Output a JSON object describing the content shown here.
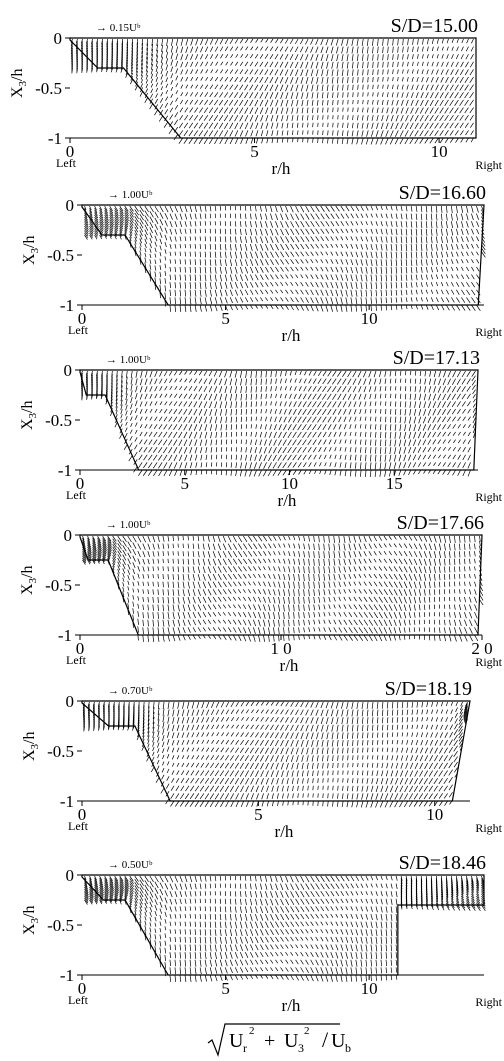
{
  "figure": {
    "bottom_label_main": "U",
    "bottom_label_sub_r": "r",
    "bottom_label_sub_3": "3",
    "bottom_label_plus": "+",
    "bottom_label_exp": "2",
    "bottom_label_den": "U",
    "bottom_label_den_sub": "b"
  },
  "chart_data": [
    {
      "type": "quiver",
      "title": "S/D=15.00",
      "scale_label": "→ 0.15Uᵇ",
      "ylabel": "X₃/h",
      "xlabel": "r/h",
      "left_label": "Left",
      "right_label": "Right",
      "xlim": [
        0,
        11
      ],
      "ylim": [
        -1,
        0
      ],
      "xticks": [
        "0",
        "5",
        "10"
      ],
      "xtick_values": [
        0,
        5,
        10
      ],
      "yticks": [
        "0",
        "-0.5",
        "-1"
      ],
      "ytick_values": [
        0,
        -0.5,
        -1
      ],
      "domain_bottom_r": [
        3.0,
        11.0
      ],
      "step": {
        "r": [
          0.75,
          1.45
        ],
        "x3": -0.3
      }
    },
    {
      "type": "quiver",
      "title": "S/D=16.60",
      "scale_label": "→ 1.00Uᵇ",
      "ylabel": "X₃/h",
      "xlabel": "r/h",
      "left_label": "Left",
      "right_label": "Right",
      "xlim": [
        0,
        14
      ],
      "ylim": [
        -1,
        0
      ],
      "xticks": [
        "0",
        "5",
        "10"
      ],
      "xtick_values": [
        0,
        5,
        10
      ],
      "yticks": [
        "0",
        "-0.5",
        "-1"
      ],
      "ytick_values": [
        0,
        -0.5,
        -1
      ],
      "domain_bottom_r": [
        3.0,
        13.8
      ],
      "step": {
        "r": [
          0.7,
          1.5
        ],
        "x3": -0.3
      }
    },
    {
      "type": "quiver",
      "title": "S/D=17.13",
      "scale_label": "→ 1.00Uᵇ",
      "ylabel": "X₃/h",
      "xlabel": "r/h",
      "left_label": "Left",
      "right_label": "Right",
      "xlim": [
        0,
        19
      ],
      "ylim": [
        -1,
        0
      ],
      "xticks": [
        "0",
        "5",
        "10",
        "15"
      ],
      "xtick_values": [
        0,
        5,
        10,
        15
      ],
      "yticks": [
        "0",
        "-0.5",
        "-1"
      ],
      "ytick_values": [
        0,
        -0.5,
        -1
      ],
      "domain_bottom_r": [
        2.8,
        18.8
      ],
      "step": {
        "r": [
          0.3,
          1.2
        ],
        "x3": -0.25
      }
    },
    {
      "type": "quiver",
      "title": "S/D=17.66",
      "scale_label": "→ 1.00Uᵇ",
      "ylabel": "X₃/h",
      "xlabel": "r/h",
      "left_label": "Left",
      "right_label": "Right",
      "xlim": [
        0,
        20
      ],
      "ylim": [
        -1,
        0
      ],
      "xticks": [
        "0",
        "1 0",
        "2 0"
      ],
      "xtick_values": [
        0,
        10,
        20
      ],
      "yticks": [
        "0",
        "-0.5",
        "-1"
      ],
      "ytick_values": [
        0,
        -0.5,
        -1
      ],
      "domain_bottom_r": [
        2.9,
        19.8
      ],
      "step": {
        "r": [
          0.4,
          1.4
        ],
        "x3": -0.25
      }
    },
    {
      "type": "quiver",
      "title": "S/D=18.19",
      "scale_label": "→ 0.70Uᵇ",
      "ylabel": "X₃/h",
      "xlabel": "r/h",
      "left_label": "Left",
      "right_label": "Right",
      "xlim": [
        0,
        11
      ],
      "ylim": [
        -1,
        0
      ],
      "xticks": [
        "0",
        "5",
        "10"
      ],
      "xtick_values": [
        0,
        5,
        10
      ],
      "yticks": [
        "0",
        "-0.5",
        "-1"
      ],
      "ytick_values": [
        0,
        -0.5,
        -1
      ],
      "domain_bottom_r": [
        2.5,
        10.5
      ],
      "step": {
        "r": [
          0.75,
          1.5
        ],
        "x3": -0.25
      }
    },
    {
      "type": "quiver",
      "title": "S/D=18.46",
      "scale_label": "→ 0.50Uᵇ",
      "ylabel": "X₃/h",
      "xlabel": "r/h",
      "left_label": "Left",
      "right_label": "Right",
      "xlim": [
        0,
        14
      ],
      "ylim": [
        -1,
        0
      ],
      "xticks": [
        "0",
        "5",
        "10"
      ],
      "xtick_values": [
        0,
        5,
        10
      ],
      "yticks": [
        "0",
        "-0.5",
        "-1"
      ],
      "ytick_values": [
        0,
        -0.5,
        -1
      ],
      "domain_bottom_r": [
        3.0,
        11.0
      ],
      "step": {
        "r": [
          0.75,
          1.5
        ],
        "x3": -0.25
      },
      "right_shoulder": {
        "r": [
          11.0,
          14.0
        ],
        "x3": -0.3
      }
    }
  ]
}
